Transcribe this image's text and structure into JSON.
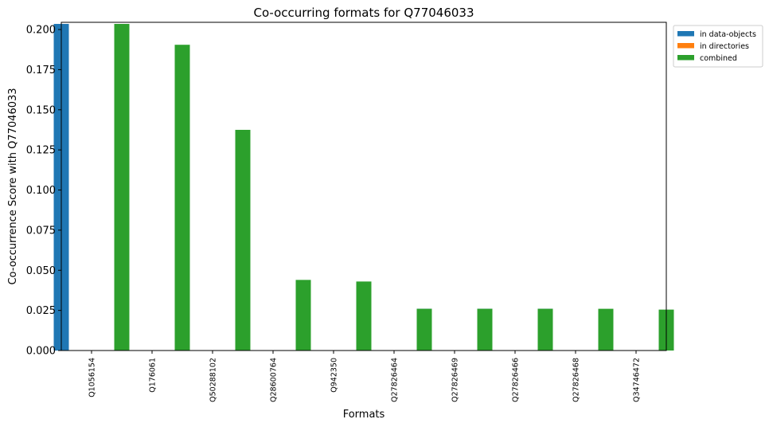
{
  "chart_data": {
    "type": "bar",
    "title": "Co-occurring formats for Q77046033",
    "xlabel": "Formats",
    "ylabel": "Co-occurrence Score with Q77046033",
    "categories": [
      "Q1056154",
      "Q176061",
      "Q50288102",
      "Q28600764",
      "Q942350",
      "Q27826464",
      "Q27826469",
      "Q27826466",
      "Q27826468",
      "Q34746472"
    ],
    "series": [
      {
        "name": "in data-objects",
        "color": "#1f77b4",
        "values": [
          0.2035,
          0.1905,
          0.1375,
          0.044,
          0.043,
          0.026,
          0.026,
          0.026,
          0.026,
          0.0255
        ]
      },
      {
        "name": "in directories",
        "color": "#ff7f0e",
        "values": [
          0,
          0,
          0,
          0,
          0,
          0,
          0,
          0,
          0,
          0
        ]
      },
      {
        "name": "combined",
        "color": "#2ca02c",
        "values": [
          0.2035,
          0.1905,
          0.1375,
          0.044,
          0.043,
          0.026,
          0.026,
          0.026,
          0.026,
          0.0255
        ]
      }
    ],
    "yticks": [
      "0.000",
      "0.025",
      "0.050",
      "0.075",
      "0.100",
      "0.125",
      "0.150",
      "0.175",
      "0.200"
    ],
    "ylim": [
      0,
      0.2045
    ],
    "grid": false,
    "legend_position": "upper right, outside plot"
  }
}
